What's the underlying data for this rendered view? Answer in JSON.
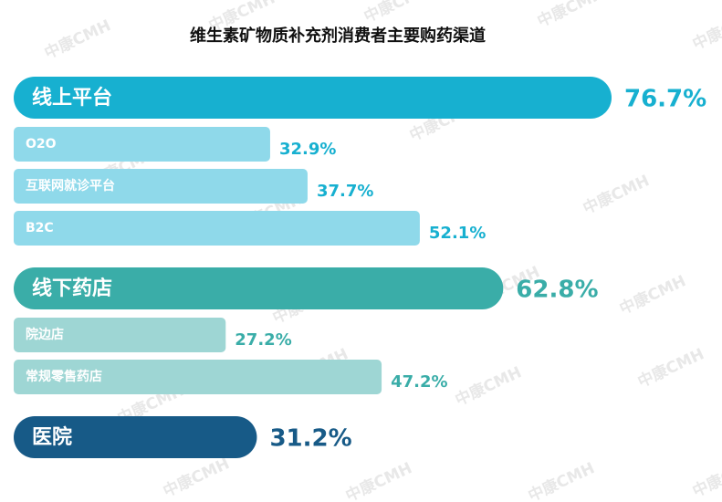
{
  "chart_data": {
    "type": "grouped-bar",
    "title": "维生素矿物质补充剂消费者主要购药渠道",
    "watermark": "中康CMH",
    "groups": [
      {
        "name": "线上平台",
        "value": 76.7,
        "value_label": "76.7%",
        "color": "#17b0d0",
        "sub_color": "#8fd9ea",
        "items": [
          {
            "name": "O2O",
            "value": 32.9,
            "value_label": "32.9%"
          },
          {
            "name": "互联网就诊平台",
            "value": 37.7,
            "value_label": "37.7%"
          },
          {
            "name": "B2C",
            "value": 52.1,
            "value_label": "52.1%"
          }
        ]
      },
      {
        "name": "线下药店",
        "value": 62.8,
        "value_label": "62.8%",
        "color": "#3aada8",
        "sub_color": "#9ed6d4",
        "items": [
          {
            "name": "院边店",
            "value": 27.2,
            "value_label": "27.2%"
          },
          {
            "name": "常规零售药店",
            "value": 47.2,
            "value_label": "47.2%"
          }
        ]
      },
      {
        "name": "医院",
        "value": 31.2,
        "value_label": "31.2%",
        "color": "#175a87",
        "sub_color": "#7fa9c6",
        "items": []
      }
    ]
  }
}
